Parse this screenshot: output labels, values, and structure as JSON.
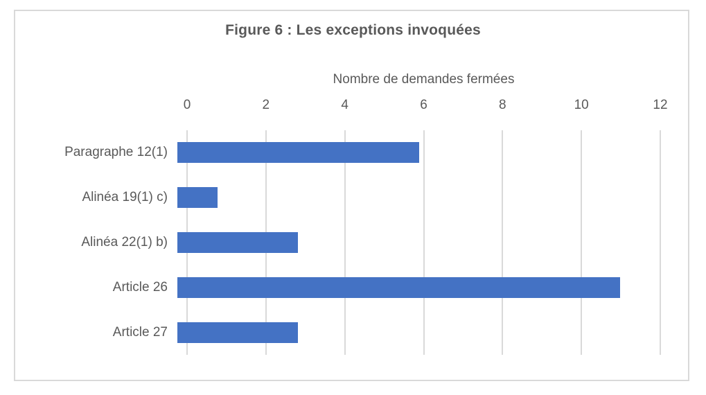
{
  "chart_data": {
    "type": "bar",
    "orientation": "horizontal",
    "title": "Figure 6 : Les exceptions invoquées",
    "xlabel": "Nombre de demandes fermées",
    "ylabel": "",
    "categories": [
      "Paragraphe 12(1)",
      "Alinéa 19(1) c)",
      "Alinéa 22(1) b)",
      "Article 26",
      "Article 27"
    ],
    "values": [
      6,
      1,
      3,
      11,
      3
    ],
    "xlim": [
      0,
      12
    ],
    "ticks": [
      0,
      2,
      4,
      6,
      8,
      10,
      12
    ],
    "value_axis_position": "top",
    "grid": true,
    "legend": "none",
    "colors": {
      "bar": "#4472C4",
      "text": "#595959",
      "gridline": "#d9d9d9",
      "frame_border": "#d9d9d9",
      "background": "#ffffff"
    }
  }
}
